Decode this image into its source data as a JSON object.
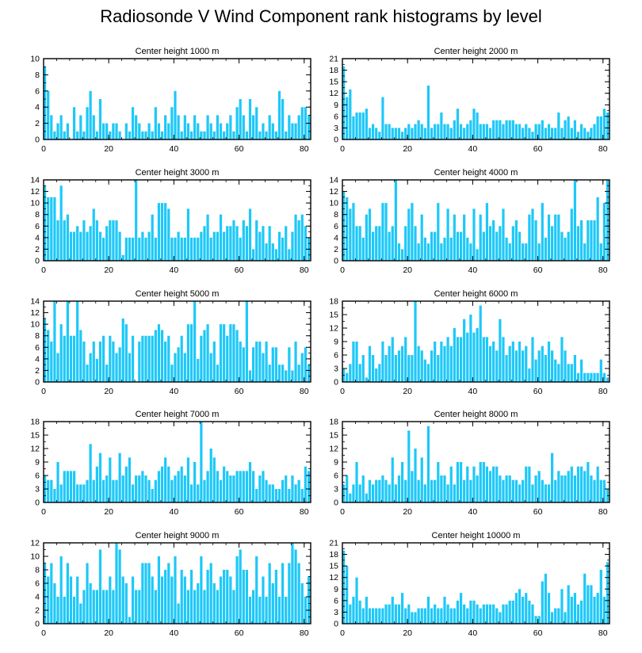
{
  "title": "Radiosonde V Wind Component rank histograms by level",
  "colors": {
    "bar": "#1ec8f8",
    "bar_edge": "#ffffff",
    "axis": "#000000"
  },
  "chart_data": [
    {
      "type": "bar",
      "title": "Center height 1000 m",
      "xlim": [
        0,
        82
      ],
      "ylim": [
        0,
        10
      ],
      "xticks": [
        0,
        20,
        40,
        60,
        80
      ],
      "yticks": [
        0,
        2,
        4,
        6,
        8,
        10
      ],
      "values": [
        9,
        6,
        3,
        1,
        2,
        3,
        1,
        2,
        0,
        4,
        1,
        3,
        1,
        4,
        6,
        3,
        1,
        5,
        2,
        2,
        1,
        2,
        2,
        1,
        0,
        2,
        1,
        4,
        3,
        2,
        1,
        1,
        2,
        1,
        4,
        2,
        1,
        3,
        2,
        4,
        6,
        3,
        1,
        3,
        2,
        1,
        3,
        2,
        1,
        1,
        3,
        2,
        1,
        3,
        2,
        1,
        2,
        3,
        1,
        4,
        5,
        3,
        1,
        5,
        3,
        4,
        1,
        2,
        1,
        3,
        2,
        1,
        6,
        5,
        1,
        3,
        2,
        2,
        3,
        4,
        4,
        3
      ]
    },
    {
      "type": "bar",
      "title": "Center height 2000 m",
      "xlim": [
        0,
        82
      ],
      "ylim": [
        0,
        21
      ],
      "xticks": [
        0,
        20,
        40,
        60,
        80
      ],
      "yticks": [
        0,
        3,
        6,
        9,
        12,
        15,
        18,
        21
      ],
      "values": [
        19,
        11,
        13,
        6,
        7,
        7,
        7,
        8,
        3,
        4,
        3,
        2,
        11,
        4,
        4,
        3,
        3,
        3,
        2,
        3,
        4,
        3,
        4,
        5,
        4,
        3,
        14,
        3,
        4,
        4,
        7,
        4,
        4,
        3,
        5,
        8,
        4,
        3,
        4,
        5,
        8,
        7,
        4,
        4,
        4,
        3,
        5,
        5,
        5,
        4,
        5,
        5,
        5,
        4,
        4,
        3,
        4,
        3,
        2,
        4,
        4,
        5,
        3,
        4,
        3,
        3,
        7,
        3,
        5,
        6,
        3,
        5,
        2,
        4,
        3,
        2,
        3,
        4,
        6,
        6,
        8,
        7
      ]
    },
    {
      "type": "bar",
      "title": "Center height 3000 m",
      "xlim": [
        0,
        82
      ],
      "ylim": [
        0,
        14
      ],
      "xticks": [
        0,
        20,
        40,
        60,
        80
      ],
      "yticks": [
        0,
        2,
        4,
        6,
        8,
        10,
        12,
        14
      ],
      "values": [
        13,
        11,
        11,
        11,
        7,
        13,
        7,
        8,
        5,
        5,
        6,
        5,
        7,
        5,
        6,
        9,
        7,
        5,
        4,
        6,
        7,
        7,
        7,
        5,
        1,
        4,
        4,
        4,
        14,
        4,
        5,
        4,
        5,
        8,
        4,
        10,
        10,
        10,
        9,
        4,
        4,
        5,
        4,
        4,
        9,
        4,
        4,
        4,
        5,
        6,
        8,
        4,
        5,
        5,
        8,
        5,
        6,
        6,
        7,
        6,
        4,
        7,
        6,
        9,
        2,
        7,
        5,
        6,
        3,
        6,
        3,
        2,
        5,
        4,
        6,
        2,
        5,
        8,
        7,
        8,
        6,
        4
      ]
    },
    {
      "type": "bar",
      "title": "Center height 4000 m",
      "xlim": [
        0,
        82
      ],
      "ylim": [
        0,
        14
      ],
      "xticks": [
        0,
        20,
        40,
        60,
        80
      ],
      "yticks": [
        0,
        2,
        4,
        6,
        8,
        10,
        12,
        14
      ],
      "values": [
        12,
        11,
        9,
        10,
        6,
        6,
        4,
        8,
        9,
        5,
        6,
        6,
        10,
        10,
        5,
        6,
        14,
        3,
        2,
        6,
        9,
        10,
        6,
        3,
        8,
        4,
        3,
        5,
        5,
        10,
        3,
        4,
        9,
        4,
        8,
        5,
        5,
        8,
        4,
        3,
        9,
        2,
        8,
        5,
        10,
        6,
        7,
        5,
        6,
        9,
        4,
        3,
        6,
        7,
        5,
        3,
        3,
        8,
        9,
        7,
        3,
        10,
        4,
        8,
        6,
        8,
        8,
        5,
        4,
        5,
        9,
        14,
        6,
        7,
        3,
        7,
        7,
        7,
        11,
        3,
        10,
        14
      ]
    },
    {
      "type": "bar",
      "title": "Center height 5000 m",
      "xlim": [
        0,
        82
      ],
      "ylim": [
        0,
        14
      ],
      "xticks": [
        0,
        20,
        40,
        60,
        80
      ],
      "yticks": [
        0,
        2,
        4,
        6,
        8,
        10,
        12,
        14
      ],
      "values": [
        11,
        9,
        7,
        14,
        5,
        10,
        8,
        14,
        8,
        8,
        14,
        9,
        7,
        3,
        5,
        7,
        4,
        7,
        8,
        3,
        8,
        7,
        5,
        6,
        11,
        10,
        5,
        8,
        0,
        7,
        8,
        8,
        8,
        8,
        9,
        10,
        9,
        7,
        8,
        3,
        5,
        6,
        8,
        5,
        10,
        10,
        14,
        4,
        8,
        9,
        10,
        5,
        7,
        3,
        10,
        10,
        8,
        10,
        10,
        9,
        7,
        6,
        14,
        2,
        6,
        7,
        7,
        5,
        7,
        3,
        6,
        6,
        3,
        3,
        2,
        6,
        2,
        7,
        3,
        5,
        6,
        3
      ]
    },
    {
      "type": "bar",
      "title": "Center height 6000 m",
      "xlim": [
        0,
        82
      ],
      "ylim": [
        0,
        18
      ],
      "xticks": [
        0,
        20,
        40,
        60,
        80
      ],
      "yticks": [
        0,
        3,
        6,
        9,
        12,
        15,
        18
      ],
      "values": [
        3,
        2,
        4,
        9,
        9,
        4,
        6,
        1,
        8,
        6,
        3,
        4,
        9,
        6,
        8,
        10,
        6,
        7,
        8,
        10,
        6,
        6,
        18,
        8,
        7,
        5,
        4,
        7,
        9,
        6,
        9,
        8,
        10,
        8,
        12,
        10,
        10,
        14,
        11,
        15,
        11,
        12,
        17,
        10,
        10,
        8,
        9,
        7,
        14,
        10,
        6,
        8,
        9,
        7,
        9,
        7,
        8,
        3,
        10,
        5,
        7,
        8,
        6,
        9,
        7,
        5,
        4,
        10,
        7,
        4,
        4,
        6,
        2,
        5,
        2,
        2,
        2,
        2,
        2,
        5,
        2,
        1
      ]
    },
    {
      "type": "bar",
      "title": "Center height 7000 m",
      "xlim": [
        0,
        82
      ],
      "ylim": [
        0,
        18
      ],
      "xticks": [
        0,
        20,
        40,
        60,
        80
      ],
      "yticks": [
        0,
        3,
        6,
        9,
        12,
        15,
        18
      ],
      "values": [
        6,
        5,
        5,
        3,
        9,
        4,
        7,
        7,
        7,
        7,
        4,
        4,
        4,
        5,
        13,
        5,
        8,
        11,
        5,
        6,
        10,
        5,
        5,
        11,
        6,
        8,
        10,
        4,
        6,
        6,
        7,
        6,
        5,
        3,
        5,
        7,
        8,
        10,
        8,
        5,
        6,
        7,
        8,
        6,
        10,
        4,
        9,
        4,
        18,
        5,
        7,
        12,
        10,
        7,
        5,
        8,
        7,
        6,
        6,
        7,
        7,
        7,
        7,
        9,
        7,
        3,
        6,
        7,
        5,
        4,
        4,
        3,
        3,
        5,
        6,
        3,
        6,
        4,
        5,
        3,
        8,
        7
      ]
    },
    {
      "type": "bar",
      "title": "Center height 8000 m",
      "xlim": [
        0,
        82
      ],
      "ylim": [
        0,
        18
      ],
      "xticks": [
        0,
        20,
        40,
        60,
        80
      ],
      "yticks": [
        0,
        3,
        6,
        9,
        12,
        15,
        18
      ],
      "values": [
        4,
        6,
        2,
        4,
        9,
        4,
        6,
        2,
        5,
        4,
        5,
        5,
        6,
        5,
        4,
        10,
        4,
        6,
        9,
        5,
        16,
        7,
        12,
        5,
        10,
        4,
        17,
        5,
        5,
        9,
        6,
        6,
        4,
        8,
        4,
        9,
        9,
        5,
        8,
        5,
        8,
        6,
        9,
        9,
        8,
        7,
        8,
        8,
        6,
        5,
        6,
        6,
        5,
        5,
        4,
        5,
        8,
        8,
        4,
        6,
        7,
        5,
        4,
        4,
        11,
        5,
        7,
        6,
        6,
        7,
        8,
        6,
        8,
        8,
        7,
        9,
        6,
        5,
        8,
        5,
        5,
        3
      ]
    },
    {
      "type": "bar",
      "title": "Center height 9000 m",
      "xlim": [
        0,
        82
      ],
      "ylim": [
        0,
        12
      ],
      "xticks": [
        0,
        20,
        40,
        60,
        80
      ],
      "yticks": [
        0,
        2,
        4,
        6,
        8,
        10,
        12
      ],
      "values": [
        9,
        7,
        9,
        6,
        4,
        10,
        4,
        9,
        7,
        4,
        7,
        3,
        5,
        9,
        6,
        5,
        5,
        11,
        5,
        5,
        7,
        5,
        12,
        11,
        7,
        6,
        1,
        7,
        5,
        5,
        9,
        9,
        9,
        7,
        5,
        10,
        7,
        8,
        9,
        7,
        10,
        3,
        8,
        7,
        5,
        8,
        5,
        6,
        10,
        5,
        8,
        9,
        6,
        5,
        7,
        8,
        8,
        7,
        5,
        10,
        11,
        8,
        8,
        4,
        5,
        10,
        4,
        7,
        4,
        9,
        6,
        8,
        4,
        9,
        4,
        9,
        12,
        11,
        9,
        6,
        4,
        7
      ]
    },
    {
      "type": "bar",
      "title": "Center height 10000 m",
      "xlim": [
        0,
        82
      ],
      "ylim": [
        0,
        21
      ],
      "xticks": [
        0,
        20,
        40,
        60,
        80
      ],
      "yticks": [
        0,
        3,
        6,
        9,
        12,
        15,
        18,
        21
      ],
      "values": [
        19,
        15,
        5,
        7,
        12,
        6,
        4,
        7,
        4,
        4,
        4,
        4,
        4,
        5,
        5,
        7,
        5,
        5,
        8,
        4,
        5,
        3,
        3,
        4,
        4,
        4,
        7,
        4,
        5,
        4,
        4,
        7,
        5,
        4,
        4,
        6,
        8,
        5,
        4,
        6,
        6,
        5,
        4,
        5,
        5,
        5,
        5,
        4,
        3,
        5,
        5,
        6,
        6,
        8,
        9,
        7,
        8,
        6,
        5,
        2,
        2,
        11,
        13,
        8,
        3,
        4,
        4,
        9,
        3,
        10,
        7,
        8,
        5,
        6,
        13,
        10,
        10,
        7,
        8,
        14,
        7,
        16
      ]
    }
  ]
}
